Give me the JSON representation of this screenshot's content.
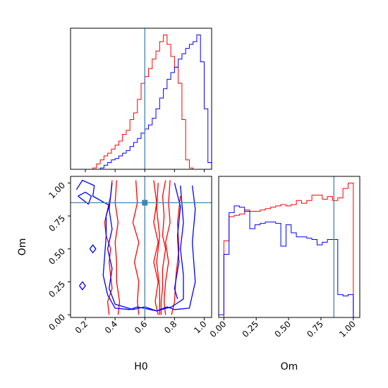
{
  "colors": {
    "series_a": "#ff0000",
    "series_b": "#0000ff",
    "truth": "#4682b4",
    "axes": "#000000"
  },
  "chart_data": [
    {
      "type": "histogram",
      "panel": "H0 marginal",
      "xlabel": "",
      "ylabel": "",
      "xlim": [
        0.1,
        1.05
      ],
      "truth_x": 0.6,
      "bin_edges": [
        0.1,
        0.125,
        0.15,
        0.175,
        0.2,
        0.225,
        0.25,
        0.275,
        0.3,
        0.325,
        0.35,
        0.375,
        0.4,
        0.425,
        0.45,
        0.475,
        0.5,
        0.525,
        0.55,
        0.575,
        0.6,
        0.625,
        0.65,
        0.675,
        0.7,
        0.725,
        0.75,
        0.775,
        0.8,
        0.825,
        0.85,
        0.875,
        0.9,
        0.925,
        0.95,
        0.975,
        1.0,
        1.025,
        1.05
      ],
      "series": [
        {
          "values": [
            0,
            0,
            0,
            0,
            0,
            0,
            0.01,
            0.04,
            0.07,
            0.1,
            0.12,
            0.15,
            0.18,
            0.21,
            0.26,
            0.29,
            0.37,
            0.42,
            0.52,
            0.64,
            0.69,
            0.75,
            0.82,
            0.88,
            0.95,
            1.0,
            0.93,
            0.84,
            0.76,
            0.64,
            0.37,
            0.07,
            0.01,
            0,
            0,
            0,
            0,
            0
          ]
        },
        {
          "values": [
            0,
            0,
            0,
            0,
            0,
            0,
            0,
            0,
            0.01,
            0.03,
            0.05,
            0.07,
            0.08,
            0.1,
            0.12,
            0.14,
            0.17,
            0.2,
            0.23,
            0.27,
            0.3,
            0.33,
            0.38,
            0.45,
            0.53,
            0.6,
            0.67,
            0.72,
            0.76,
            0.82,
            0.86,
            0.9,
            0.93,
            0.95,
            1.0,
            0.8,
            0.45,
            0.05
          ]
        }
      ]
    },
    {
      "type": "contour",
      "panel": "H0 vs Om",
      "xlabel": "H0",
      "ylabel": "Om",
      "xlim": [
        0.1,
        1.05
      ],
      "ylim": [
        -0.02,
        1.05
      ],
      "xticks": [
        "0.2",
        "0.4",
        "0.6",
        "0.8",
        "1.0"
      ],
      "yticks": [
        "0.00",
        "0.25",
        "0.50",
        "0.75",
        "1.00"
      ],
      "truth": [
        0.6,
        0.85
      ],
      "series": [
        {
          "contours": [
            [
              [
                0.38,
                1.02
              ],
              [
                0.37,
                0.9
              ],
              [
                0.35,
                0.8
              ],
              [
                0.33,
                0.7
              ],
              [
                0.34,
                0.6
              ],
              [
                0.37,
                0.5
              ],
              [
                0.36,
                0.4
              ],
              [
                0.37,
                0.3
              ],
              [
                0.38,
                0.2
              ],
              [
                0.35,
                0.1
              ],
              [
                0.36,
                0.0
              ]
            ],
            [
              [
                0.74,
                1.02
              ],
              [
                0.72,
                0.9
              ],
              [
                0.73,
                0.75
              ],
              [
                0.72,
                0.6
              ],
              [
                0.74,
                0.5
              ],
              [
                0.72,
                0.35
              ],
              [
                0.72,
                0.2
              ],
              [
                0.71,
                0.1
              ],
              [
                0.71,
                0.0
              ]
            ],
            [
              [
                0.41,
                1.02
              ],
              [
                0.4,
                0.85
              ],
              [
                0.42,
                0.7
              ],
              [
                0.4,
                0.55
              ],
              [
                0.41,
                0.4
              ],
              [
                0.41,
                0.25
              ],
              [
                0.43,
                0.1
              ],
              [
                0.42,
                0.0
              ]
            ],
            [
              [
                0.77,
                1.02
              ],
              [
                0.76,
                0.85
              ],
              [
                0.77,
                0.7
              ],
              [
                0.74,
                0.55
              ],
              [
                0.76,
                0.4
              ],
              [
                0.74,
                0.25
              ],
              [
                0.73,
                0.1
              ],
              [
                0.74,
                0.0
              ]
            ],
            [
              [
                0.54,
                1.02
              ],
              [
                0.55,
                0.85
              ],
              [
                0.52,
                0.7
              ],
              [
                0.56,
                0.55
              ],
              [
                0.53,
                0.4
              ],
              [
                0.56,
                0.25
              ],
              [
                0.55,
                0.1
              ],
              [
                0.56,
                0.0
              ]
            ],
            [
              [
                0.66,
                1.02
              ],
              [
                0.68,
                0.85
              ],
              [
                0.66,
                0.7
              ],
              [
                0.69,
                0.55
              ],
              [
                0.66,
                0.4
              ],
              [
                0.69,
                0.25
              ],
              [
                0.67,
                0.1
              ],
              [
                0.69,
                0.0
              ]
            ],
            [
              [
                0.69,
                1.0
              ],
              [
                0.68,
                0.8
              ],
              [
                0.7,
                0.6
              ],
              [
                0.68,
                0.4
              ],
              [
                0.7,
                0.2
              ],
              [
                0.7,
                0.0
              ]
            ],
            [
              [
                0.84,
                0.9
              ],
              [
                0.82,
                0.7
              ],
              [
                0.83,
                0.5
              ],
              [
                0.81,
                0.3
              ],
              [
                0.8,
                0.1
              ],
              [
                0.78,
                0.0
              ]
            ]
          ]
        },
        {
          "contours": [
            [
              [
                0.14,
                0.95
              ],
              [
                0.18,
                1.02
              ],
              [
                0.26,
                0.98
              ],
              [
                0.25,
                0.9
              ],
              [
                0.36,
                0.83
              ],
              [
                0.34,
                0.75
              ],
              [
                0.34,
                0.6
              ],
              [
                0.33,
                0.45
              ],
              [
                0.32,
                0.3
              ],
              [
                0.35,
                0.15
              ],
              [
                0.4,
                0.05
              ],
              [
                0.5,
                0.04
              ],
              [
                0.55,
                0.06
              ],
              [
                0.68,
                0.03
              ],
              [
                0.75,
                0.06
              ],
              [
                0.8,
                0.04
              ],
              [
                0.9,
                0.05
              ],
              [
                0.94,
                0.25
              ],
              [
                0.92,
                0.55
              ],
              [
                0.94,
                0.8
              ],
              [
                0.92,
                0.98
              ]
            ],
            [
              [
                0.38,
                1.0
              ],
              [
                0.36,
                0.8
              ],
              [
                0.38,
                0.65
              ],
              [
                0.35,
                0.5
              ],
              [
                0.38,
                0.35
              ],
              [
                0.36,
                0.2
              ],
              [
                0.4,
                0.08
              ],
              [
                0.52,
                0.04
              ],
              [
                0.6,
                0.06
              ],
              [
                0.68,
                0.03
              ],
              [
                0.78,
                0.06
              ],
              [
                0.86,
                0.12
              ],
              [
                0.86,
                0.3
              ],
              [
                0.84,
                0.5
              ],
              [
                0.86,
                0.7
              ],
              [
                0.84,
                0.98
              ]
            ],
            [
              [
                0.8,
                1.0
              ],
              [
                0.84,
                0.82
              ],
              [
                0.82,
                0.6
              ],
              [
                0.83,
                0.4
              ],
              [
                0.8,
                0.2
              ],
              [
                0.82,
                0.12
              ]
            ],
            [
              [
                0.16,
                0.22
              ],
              [
                0.18,
                0.19
              ],
              [
                0.2,
                0.22
              ],
              [
                0.18,
                0.25
              ],
              [
                0.16,
                0.22
              ]
            ],
            [
              [
                0.23,
                0.5
              ],
              [
                0.25,
                0.47
              ],
              [
                0.27,
                0.5
              ],
              [
                0.25,
                0.53
              ],
              [
                0.23,
                0.5
              ]
            ],
            [
              [
                0.15,
                0.9
              ],
              [
                0.2,
                0.93
              ],
              [
                0.24,
                0.9
              ],
              [
                0.22,
                0.84
              ],
              [
                0.15,
                0.9
              ]
            ]
          ]
        }
      ]
    },
    {
      "type": "histogram",
      "panel": "Om marginal",
      "xlabel": "Om",
      "ylabel": "",
      "xlim": [
        -0.04,
        1.05
      ],
      "truth_x": 0.85,
      "xticks": [
        "0.00",
        "0.25",
        "0.50",
        "0.75",
        "1.00"
      ],
      "bin_edges": [
        -0.04,
        0.0,
        0.04,
        0.08,
        0.12,
        0.16,
        0.2,
        0.24,
        0.28,
        0.32,
        0.36,
        0.4,
        0.44,
        0.48,
        0.52,
        0.56,
        0.6,
        0.64,
        0.68,
        0.72,
        0.76,
        0.8,
        0.84,
        0.88,
        0.92,
        0.96,
        1.0,
        1.05
      ],
      "series": [
        {
          "values": [
            0,
            0.57,
            0.75,
            0.76,
            0.77,
            0.8,
            0.79,
            0.79,
            0.8,
            0.81,
            0.82,
            0.83,
            0.84,
            0.83,
            0.84,
            0.87,
            0.85,
            0.87,
            0.91,
            0.91,
            0.88,
            0.9,
            0.87,
            0.89,
            0.96,
            1.0,
            0
          ]
        },
        {
          "values": [
            0.02,
            0.47,
            0.78,
            0.83,
            0.82,
            0.79,
            0.66,
            0.69,
            0.7,
            0.71,
            0.71,
            0.7,
            0.53,
            0.69,
            0.63,
            0.6,
            0.6,
            0.59,
            0.58,
            0.54,
            0.56,
            0.58,
            0.58,
            0.17,
            0.16,
            0.17,
            0
          ]
        }
      ]
    }
  ]
}
